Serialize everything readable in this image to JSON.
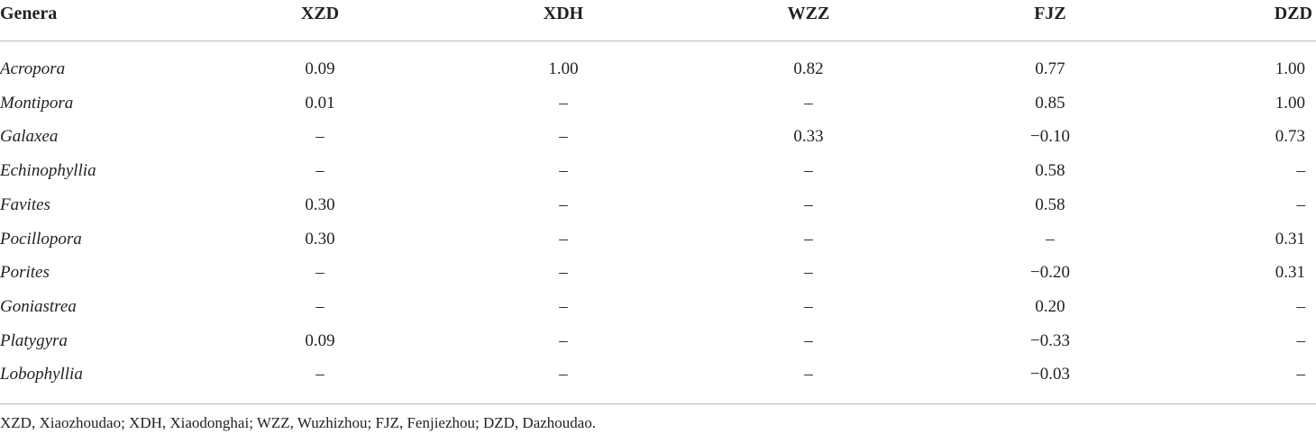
{
  "table": {
    "header": [
      "Genera",
      "XZD",
      "XDH",
      "WZZ",
      "FJZ",
      "DZD"
    ],
    "rows": [
      [
        "Acropora",
        "0.09",
        "1.00",
        "0.82",
        "0.77",
        "1.00"
      ],
      [
        "Montipora",
        "0.01",
        "–",
        "–",
        "0.85",
        "1.00"
      ],
      [
        "Galaxea",
        "–",
        "–",
        "0.33",
        "−0.10",
        "0.73"
      ],
      [
        "Echinophyllia",
        "–",
        "–",
        "–",
        "0.58",
        "–"
      ],
      [
        "Favites",
        "0.30",
        "–",
        "–",
        "0.58",
        "–"
      ],
      [
        "Pocillopora",
        "0.30",
        "–",
        "–",
        "–",
        "0.31"
      ],
      [
        "Porites",
        "–",
        "–",
        "–",
        "−0.20",
        "0.31"
      ],
      [
        "Goniastrea",
        "–",
        "–",
        "–",
        "0.20",
        "–"
      ],
      [
        "Platygyra",
        "0.09",
        "–",
        "–",
        "−0.33",
        "–"
      ],
      [
        "Lobophyllia",
        "–",
        "–",
        "–",
        "−0.03",
        "–"
      ]
    ],
    "footnote": "XZD, Xiaozhoudao; XDH, Xiaodonghai; WZZ, Wuzhizhou; FJZ, Fenjiezhou; DZD, Dazhoudao."
  }
}
